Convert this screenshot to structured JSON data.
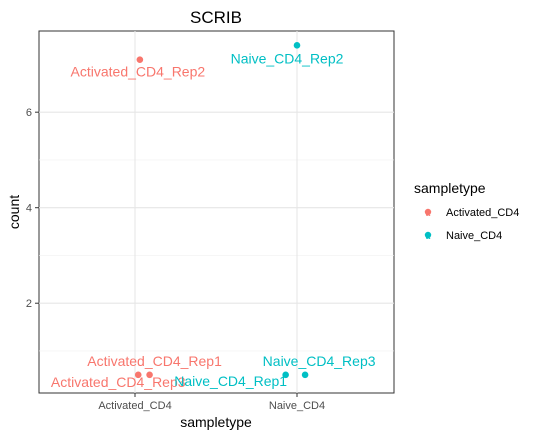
{
  "chart_data": {
    "type": "scatter",
    "title": "SCRIB",
    "xlabel": "sampletype",
    "ylabel": "count",
    "categories": [
      "Activated_CD4",
      "Naive_CD4"
    ],
    "yticks": [
      2,
      4,
      6
    ],
    "ylim": [
      0.12,
      7.7
    ],
    "grid": true,
    "legend": {
      "title": "sampletype",
      "position": "right",
      "entries": [
        "Activated_CD4",
        "Naive_CD4"
      ]
    },
    "colors": {
      "Activated_CD4": "#F8766D",
      "Naive_CD4": "#00BFC4"
    },
    "points": [
      {
        "label": "Activated_CD4_Rep2",
        "group": "Activated_CD4",
        "x": "Activated_CD4",
        "jitter": 0.03,
        "y": 7.1
      },
      {
        "label": "Activated_CD4_Rep1",
        "group": "Activated_CD4",
        "x": "Activated_CD4",
        "jitter": 0.09,
        "y": 0.5
      },
      {
        "label": "Activated_CD4_Rep3",
        "group": "Activated_CD4",
        "x": "Activated_CD4",
        "jitter": 0.02,
        "y": 0.5
      },
      {
        "label": "Naive_CD4_Rep2",
        "group": "Naive_CD4",
        "x": "Naive_CD4",
        "jitter": 0.0,
        "y": 7.4
      },
      {
        "label": "Naive_CD4_Rep3",
        "group": "Naive_CD4",
        "x": "Naive_CD4",
        "jitter": 0.05,
        "y": 0.5
      },
      {
        "label": "Naive_CD4_Rep1",
        "group": "Naive_CD4",
        "x": "Naive_CD4",
        "jitter": -0.07,
        "y": 0.5
      }
    ]
  }
}
